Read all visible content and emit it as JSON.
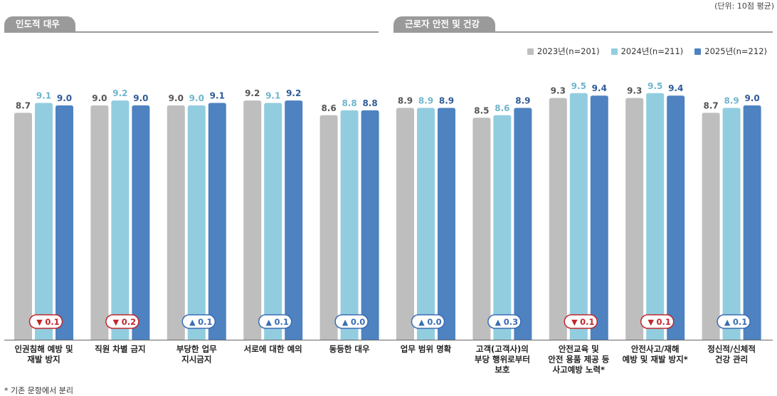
{
  "unit_note": "(단위: 10점 평균)",
  "sections": [
    {
      "label": "인도적 대우"
    },
    {
      "label": "근로자 안전 및 건강"
    }
  ],
  "footnote": "* 기존 문항에서 분리",
  "colors": {
    "2023": "#bebebe",
    "2024": "#92cddf",
    "2025": "#4e82c0",
    "up": "#3a6db5",
    "down": "#c0272d",
    "label_2023": "#555555",
    "label_2024": "#6fb6cc",
    "label_2025": "#2f5b97"
  },
  "chart_data": {
    "type": "bar",
    "categories": [
      [
        "인권침해 예방 및",
        "재발 방지"
      ],
      [
        "직원 차별 금지"
      ],
      [
        "부당한 업무",
        "지시금지"
      ],
      [
        "서로에 대한 예의"
      ],
      [
        "동등한 대우"
      ],
      [
        "업무 범위 명확"
      ],
      [
        "고객(고객사)의",
        "부당 행위로부터",
        "보호"
      ],
      [
        "안전교육 및",
        "안전 용품 제공 등",
        "사고예방 노력*"
      ],
      [
        "안전사고/재해",
        "예방 및 재발 방지*"
      ],
      [
        "정신적/신체적",
        "건강 관리"
      ]
    ],
    "series": [
      {
        "name": "2023년(n=201)",
        "values": [
          8.7,
          9.0,
          9.0,
          9.2,
          8.6,
          8.9,
          8.5,
          9.3,
          9.3,
          8.7
        ]
      },
      {
        "name": "2024년(n=211)",
        "values": [
          9.1,
          9.2,
          9.0,
          9.1,
          8.8,
          8.9,
          8.6,
          9.5,
          9.5,
          8.9
        ]
      },
      {
        "name": "2025년(n=212)",
        "values": [
          9.0,
          9.0,
          9.1,
          9.2,
          8.8,
          8.9,
          8.9,
          9.4,
          9.4,
          9.0
        ]
      }
    ],
    "value_labels": [
      [
        "8.7",
        "9.1",
        "9.0"
      ],
      [
        "9.0",
        "9.2",
        "9.0"
      ],
      [
        "9.0",
        "9.0",
        "9.1"
      ],
      [
        "9.2",
        "9.1",
        "9.2"
      ],
      [
        "8.6",
        "8.8",
        "8.8"
      ],
      [
        "8.9",
        "8.9",
        "8.9"
      ],
      [
        "8.5",
        "8.6",
        "8.9"
      ],
      [
        "9.3",
        "9.5",
        "9.4"
      ],
      [
        "9.3",
        "9.5",
        "9.4"
      ],
      [
        "8.7",
        "8.9",
        "9.0"
      ]
    ],
    "changes": [
      {
        "dir": "down",
        "symbol": "▼",
        "text": "0.1"
      },
      {
        "dir": "down",
        "symbol": "▼",
        "text": "0.2"
      },
      {
        "dir": "up",
        "symbol": "▲",
        "text": "0.1"
      },
      {
        "dir": "up",
        "symbol": "▲",
        "text": "0.1"
      },
      {
        "dir": "up",
        "symbol": "▲",
        "text": "0.0"
      },
      {
        "dir": "up",
        "symbol": "▲",
        "text": "0.0"
      },
      {
        "dir": "up",
        "symbol": "▲",
        "text": "0.3"
      },
      {
        "dir": "down",
        "symbol": "▼",
        "text": "0.1"
      },
      {
        "dir": "down",
        "symbol": "▼",
        "text": "0.1"
      },
      {
        "dir": "up",
        "symbol": "▲",
        "text": "0.1"
      }
    ]
  }
}
